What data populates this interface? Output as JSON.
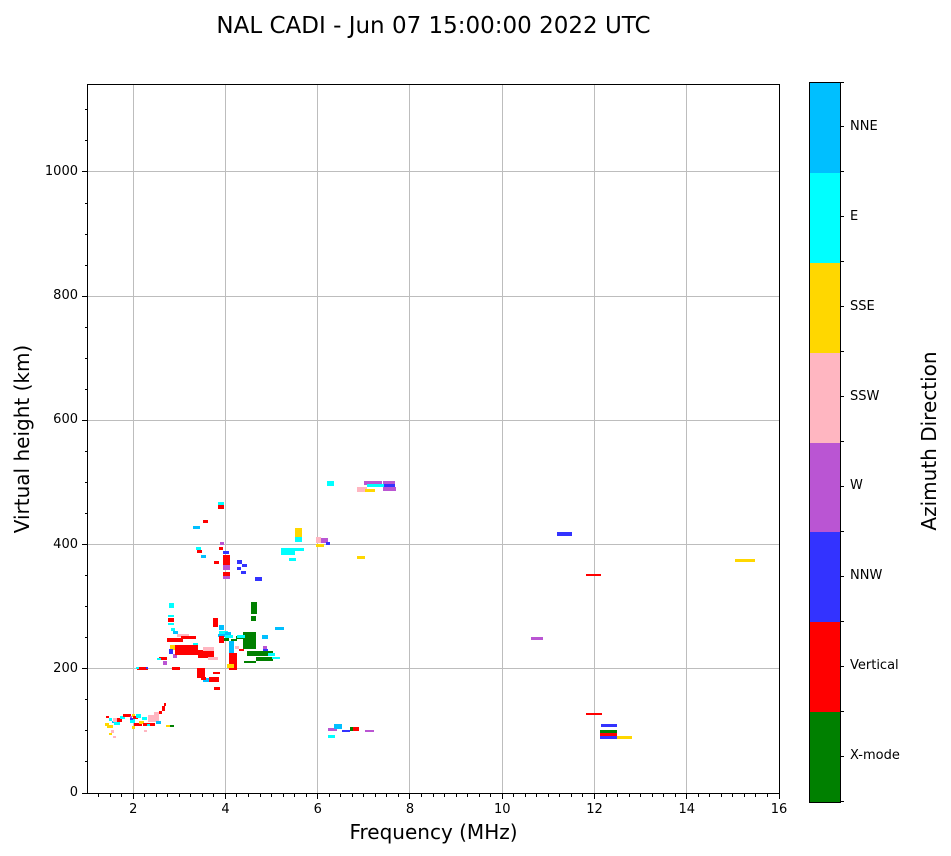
{
  "chart_data": {
    "type": "scatter",
    "title": "NAL CADI - Jun 07 15:00:00 2022 UTC",
    "xlabel": "Frequency (MHz)",
    "ylabel": "Virtual height (km)",
    "xlim": [
      1.02,
      16
    ],
    "ylim": [
      0,
      1140
    ],
    "x_major_ticks": [
      2,
      4,
      6,
      8,
      10,
      12,
      14,
      16
    ],
    "y_major_ticks": [
      0,
      200,
      400,
      600,
      800,
      1000
    ],
    "x_minor_step": 0.25,
    "y_minor_step": 50,
    "grid": true,
    "grid_color": "#bdbdbd",
    "marker_shape": "square",
    "colorbar": {
      "label": "Azimuth Direction",
      "segments": [
        {
          "label": "NNE",
          "color": "#00BFFF"
        },
        {
          "label": "E",
          "color": "#00FFFF"
        },
        {
          "label": "SSE",
          "color": "#FFD700"
        },
        {
          "label": "SSW",
          "color": "#FFB6C1"
        },
        {
          "label": "W",
          "color": "#BA55D3"
        },
        {
          "label": "NNW",
          "color": "#3333FF"
        },
        {
          "label": "Vertical",
          "color": "#FF0000"
        },
        {
          "label": "X-mode",
          "color": "#008000"
        }
      ]
    },
    "palette": {
      "nne": "#00BFFF",
      "e": "#00FFFF",
      "sse": "#FFD700",
      "ssw": "#FFB6C1",
      "w": "#BA55D3",
      "nnw": "#3333FF",
      "v": "#FF0000",
      "x": "#008000"
    },
    "points_schema": [
      "freq_MHz",
      "height_km",
      "direction",
      "extent_MHz",
      "extent_km"
    ],
    "points": [
      [
        1.44,
        122,
        "v",
        0.06,
        4
      ],
      [
        1.5,
        118,
        "e",
        0.06,
        4
      ],
      [
        1.43,
        111,
        "sse",
        0.07,
        5
      ],
      [
        1.5,
        107,
        "sse",
        0.13,
        4
      ],
      [
        1.56,
        114,
        "nne",
        0.06,
        4
      ],
      [
        1.6,
        117,
        "ssw",
        0.08,
        6
      ],
      [
        1.65,
        112,
        "e",
        0.12,
        4
      ],
      [
        1.7,
        117,
        "v",
        0.1,
        6
      ],
      [
        1.76,
        121,
        "e",
        0.11,
        5
      ],
      [
        1.86,
        125,
        "v",
        0.17,
        4
      ],
      [
        1.95,
        121,
        "w",
        0.06,
        5
      ],
      [
        1.98,
        116,
        "e",
        0.11,
        6
      ],
      [
        2.01,
        125,
        "sse",
        0.06,
        4
      ],
      [
        2.05,
        121,
        "v",
        0.1,
        5
      ],
      [
        2.12,
        124,
        "e",
        0.11,
        5
      ],
      [
        1.55,
        99,
        "ssw",
        0.07,
        5
      ],
      [
        1.5,
        95,
        "sse",
        0.07,
        4
      ],
      [
        1.59,
        90,
        "ssw",
        0.06,
        4
      ],
      [
        1.96,
        119,
        "nnw",
        0.06,
        4
      ],
      [
        2.0,
        105,
        "sse",
        0.07,
        5
      ],
      [
        2.1,
        110,
        "v",
        0.17,
        4
      ],
      [
        2.17,
        113,
        "sse",
        0.11,
        5
      ],
      [
        2.25,
        120,
        "e",
        0.11,
        5
      ],
      [
        2.35,
        110,
        "v",
        0.26,
        4
      ],
      [
        2.33,
        110,
        "e",
        0.08,
        3
      ],
      [
        2.45,
        120,
        "ssw",
        0.24,
        10
      ],
      [
        2.51,
        126,
        "ssw",
        0.11,
        9
      ],
      [
        2.55,
        114,
        "nne",
        0.1,
        5
      ],
      [
        2.6,
        129,
        "v",
        0.07,
        5
      ],
      [
        2.66,
        136,
        "v",
        0.07,
        9
      ],
      [
        2.69,
        142,
        "v",
        0.06,
        5
      ],
      [
        2.27,
        100,
        "ssw",
        0.07,
        4
      ],
      [
        2.76,
        108,
        "sse",
        0.08,
        4
      ],
      [
        2.85,
        108,
        "x",
        0.09,
        4
      ],
      [
        2.83,
        302,
        "e",
        0.1,
        8
      ],
      [
        2.86,
        263,
        "e",
        0.09,
        4
      ],
      [
        2.82,
        279,
        "v",
        0.11,
        6
      ],
      [
        2.82,
        285,
        "e",
        0.11,
        4
      ],
      [
        2.82,
        272,
        "e",
        0.11,
        4
      ],
      [
        2.92,
        259,
        "nne",
        0.11,
        5
      ],
      [
        3.08,
        253,
        "ssw",
        0.24,
        5
      ],
      [
        3.2,
        250,
        "v",
        0.32,
        5
      ],
      [
        2.91,
        246,
        "v",
        0.34,
        6
      ],
      [
        3.79,
        275,
        "v",
        0.11,
        15
      ],
      [
        3.95,
        259,
        "e",
        0.2,
        5
      ],
      [
        3.97,
        253,
        "nne",
        0.25,
        5
      ],
      [
        3.91,
        266,
        "nne",
        0.11,
        8
      ],
      [
        4.33,
        250,
        "x",
        0.2,
        5
      ],
      [
        4.46,
        247,
        "x",
        0.09,
        10
      ],
      [
        3.91,
        247,
        "v",
        0.1,
        12
      ],
      [
        4.03,
        247,
        "x",
        0.11,
        4
      ],
      [
        4.19,
        246,
        "x",
        0.13,
        4
      ],
      [
        4.13,
        226,
        "nne",
        0.12,
        37
      ],
      [
        2.85,
        234,
        "sse",
        0.12,
        8
      ],
      [
        2.82,
        228,
        "nnw",
        0.09,
        7
      ],
      [
        2.91,
        221,
        "w",
        0.09,
        7
      ],
      [
        3.05,
        235,
        "e",
        0.11,
        6
      ],
      [
        3.35,
        239,
        "e",
        0.09,
        6
      ],
      [
        3.16,
        230,
        "v",
        0.5,
        16
      ],
      [
        3.58,
        224,
        "v",
        0.35,
        13
      ],
      [
        3.64,
        232,
        "ssw",
        0.24,
        6
      ],
      [
        3.73,
        216,
        "ssw",
        0.2,
        5
      ],
      [
        2.64,
        216,
        "v",
        0.18,
        5
      ],
      [
        2.56,
        216,
        "e",
        0.07,
        4
      ],
      [
        2.69,
        209,
        "w",
        0.09,
        7
      ],
      [
        2.2,
        200,
        "v",
        0.25,
        5
      ],
      [
        2.3,
        201,
        "nnw",
        0.05,
        4
      ],
      [
        2.1,
        201,
        "e",
        0.06,
        4
      ],
      [
        2.93,
        201,
        "v",
        0.18,
        5
      ],
      [
        3.47,
        193,
        "v",
        0.18,
        16
      ],
      [
        3.61,
        182,
        "nne",
        0.18,
        5
      ],
      [
        3.53,
        184,
        "v",
        0.1,
        5
      ],
      [
        3.75,
        183,
        "v",
        0.2,
        8
      ],
      [
        3.8,
        193,
        "v",
        0.16,
        4
      ],
      [
        3.82,
        168,
        "v",
        0.13,
        5
      ],
      [
        4.16,
        212,
        "v",
        0.18,
        27
      ],
      [
        4.1,
        204,
        "sse",
        0.15,
        6
      ],
      [
        4.62,
        298,
        "x",
        0.12,
        19
      ],
      [
        4.61,
        281,
        "x",
        0.11,
        7
      ],
      [
        5.17,
        265,
        "nne",
        0.18,
        5
      ],
      [
        4.06,
        257,
        "nne",
        0.14,
        5
      ],
      [
        4.08,
        252,
        "e",
        0.18,
        5
      ],
      [
        4.52,
        246,
        "x",
        0.29,
        27
      ],
      [
        4.34,
        252,
        "e",
        0.18,
        5
      ],
      [
        4.86,
        251,
        "nne",
        0.13,
        7
      ],
      [
        4.25,
        234,
        "ssw",
        0.09,
        5
      ],
      [
        4.35,
        230,
        "v",
        0.11,
        4
      ],
      [
        4.85,
        234,
        "w",
        0.09,
        5
      ],
      [
        4.86,
        228,
        "nnw",
        0.11,
        7
      ],
      [
        4.75,
        224,
        "x",
        0.58,
        8
      ],
      [
        5.0,
        223,
        "e",
        0.16,
        4
      ],
      [
        4.84,
        216,
        "x",
        0.36,
        7
      ],
      [
        5.09,
        217,
        "e",
        0.18,
        4
      ],
      [
        4.53,
        211,
        "x",
        0.25,
        4
      ],
      [
        3.38,
        428,
        "nne",
        0.15,
        5
      ],
      [
        3.57,
        437,
        "v",
        0.12,
        5
      ],
      [
        3.9,
        466,
        "e",
        0.13,
        5
      ],
      [
        3.9,
        460,
        "v",
        0.13,
        6
      ],
      [
        3.92,
        402,
        "w",
        0.09,
        5
      ],
      [
        3.9,
        393,
        "v",
        0.1,
        5
      ],
      [
        3.42,
        394,
        "e",
        0.12,
        4
      ],
      [
        3.44,
        389,
        "v",
        0.1,
        4
      ],
      [
        3.52,
        381,
        "nne",
        0.1,
        5
      ],
      [
        3.81,
        371,
        "v",
        0.1,
        5
      ],
      [
        4.02,
        387,
        "nnw",
        0.13,
        5
      ],
      [
        4.02,
        375,
        "v",
        0.14,
        16
      ],
      [
        4.02,
        363,
        "w",
        0.14,
        7
      ],
      [
        4.02,
        353,
        "v",
        0.14,
        7
      ],
      [
        4.02,
        347,
        "w",
        0.14,
        5
      ],
      [
        4.3,
        372,
        "nnw",
        0.12,
        5
      ],
      [
        4.41,
        367,
        "nnw",
        0.12,
        5
      ],
      [
        4.29,
        361,
        "nnw",
        0.1,
        5
      ],
      [
        4.39,
        355,
        "nnw",
        0.12,
        5
      ],
      [
        4.72,
        345,
        "nnw",
        0.15,
        7
      ],
      [
        5.45,
        392,
        "e",
        0.5,
        6
      ],
      [
        5.35,
        386,
        "e",
        0.3,
        6
      ],
      [
        5.46,
        376,
        "e",
        0.15,
        6
      ],
      [
        5.58,
        419,
        "sse",
        0.16,
        14
      ],
      [
        5.58,
        408,
        "e",
        0.16,
        9
      ],
      [
        6.02,
        407,
        "ssw",
        0.1,
        9
      ],
      [
        6.15,
        406,
        "w",
        0.16,
        8
      ],
      [
        6.22,
        402,
        "nnw",
        0.08,
        5
      ],
      [
        6.05,
        398,
        "sse",
        0.16,
        5
      ],
      [
        6.28,
        498,
        "e",
        0.15,
        9
      ],
      [
        7.2,
        499,
        "w",
        0.38,
        7
      ],
      [
        7.55,
        500,
        "w",
        0.26,
        6
      ],
      [
        7.55,
        494,
        "nnw",
        0.26,
        6
      ],
      [
        7.25,
        495,
        "e",
        0.36,
        4
      ],
      [
        7.55,
        490,
        "w",
        0.28,
        6
      ],
      [
        6.96,
        489,
        "ssw",
        0.22,
        9
      ],
      [
        7.14,
        487,
        "sse",
        0.22,
        6
      ],
      [
        6.94,
        379,
        "sse",
        0.17,
        4
      ],
      [
        10.76,
        249,
        "w",
        0.26,
        4
      ],
      [
        11.35,
        417,
        "nnw",
        0.33,
        7
      ],
      [
        11.98,
        351,
        "v",
        0.33,
        4
      ],
      [
        15.27,
        374,
        "sse",
        0.43,
        5
      ],
      [
        11.99,
        127,
        "v",
        0.35,
        4
      ],
      [
        12.31,
        108,
        "nnw",
        0.35,
        5
      ],
      [
        12.3,
        99,
        "x",
        0.37,
        5
      ],
      [
        12.3,
        94,
        "v",
        0.37,
        5
      ],
      [
        12.3,
        90,
        "nnw",
        0.37,
        5
      ],
      [
        12.65,
        89,
        "sse",
        0.33,
        5
      ],
      [
        6.32,
        102,
        "w",
        0.21,
        4
      ],
      [
        6.44,
        107,
        "nne",
        0.17,
        7
      ],
      [
        6.3,
        91,
        "e",
        0.17,
        4
      ],
      [
        6.61,
        100,
        "nnw",
        0.18,
        3
      ],
      [
        6.74,
        103,
        "x",
        0.1,
        7
      ],
      [
        6.84,
        103,
        "v",
        0.13,
        7
      ],
      [
        7.12,
        100,
        "w",
        0.2,
        4
      ]
    ]
  }
}
